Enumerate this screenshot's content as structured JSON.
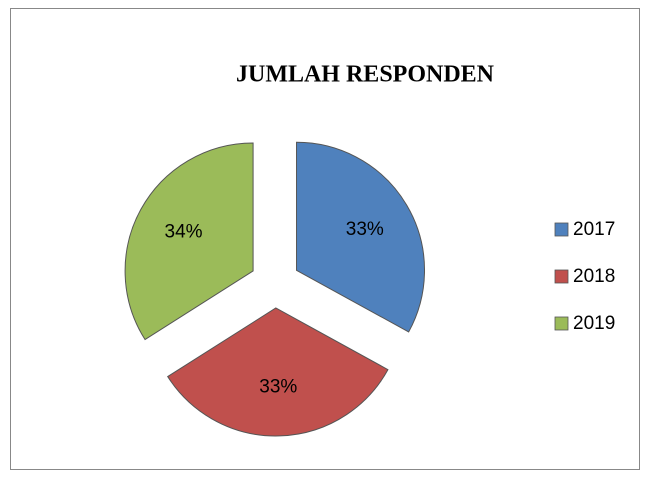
{
  "chart_data": {
    "type": "pie",
    "title": "JUMLAH RESPONDEN",
    "categories": [
      "2017",
      "2018",
      "2019"
    ],
    "values": [
      33,
      33,
      34
    ],
    "value_labels": [
      "33%",
      "33%",
      "34%"
    ],
    "colors": [
      "#4f81bd",
      "#c0504d",
      "#9bbb59"
    ],
    "exploded": true,
    "legend": "right"
  }
}
